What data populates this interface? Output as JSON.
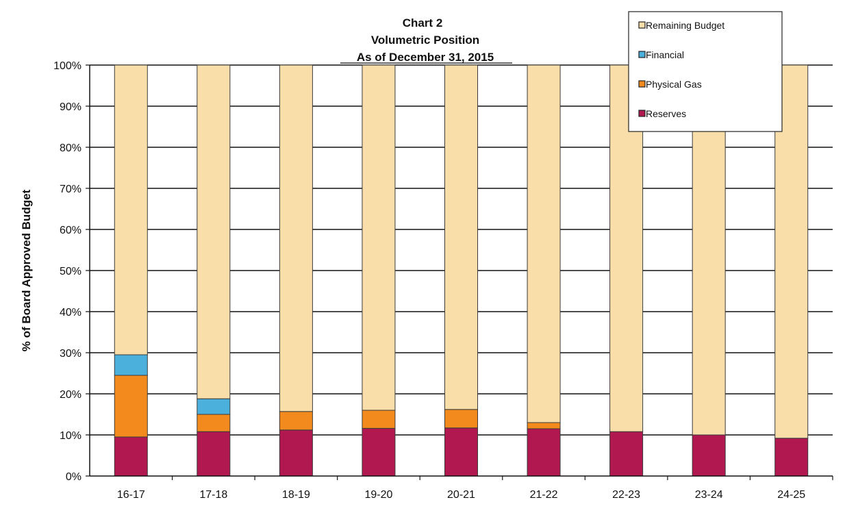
{
  "chart_data": {
    "type": "bar",
    "stacked": true,
    "title": "Chart 2",
    "subtitle_lines": [
      "Volumetric Position",
      "As of December 31, 2015"
    ],
    "xlabel": "",
    "ylabel": "% of Board Approved Budget",
    "ylim": [
      0,
      100
    ],
    "yticks": [
      "0%",
      "10%",
      "20%",
      "30%",
      "40%",
      "50%",
      "60%",
      "70%",
      "80%",
      "90%",
      "100%"
    ],
    "grid": true,
    "legend_position": "top-right",
    "categories": [
      "16-17",
      "17-18",
      "18-19",
      "19-20",
      "20-21",
      "21-22",
      "22-23",
      "23-24",
      "24-25"
    ],
    "series": [
      {
        "name": "Reserves",
        "color": "#b0184f",
        "values": [
          9.5,
          10.8,
          11.2,
          11.6,
          11.7,
          11.5,
          10.8,
          10.0,
          9.2
        ]
      },
      {
        "name": "Physical Gas",
        "color": "#f28a1e",
        "values": [
          15.0,
          4.2,
          4.5,
          4.4,
          4.5,
          1.5,
          0,
          0,
          0
        ]
      },
      {
        "name": "Financial",
        "color": "#4bb0dc",
        "values": [
          5.0,
          3.8,
          0,
          0,
          0,
          0,
          0,
          0,
          0
        ]
      },
      {
        "name": "Remaining Budget",
        "color": "#f9deaa",
        "values": [
          70.5,
          81.2,
          84.3,
          84.0,
          83.8,
          87.0,
          89.2,
          90.0,
          90.8
        ]
      }
    ],
    "legend_order": [
      "Remaining Budget",
      "Financial",
      "Physical Gas",
      "Reserves"
    ]
  }
}
